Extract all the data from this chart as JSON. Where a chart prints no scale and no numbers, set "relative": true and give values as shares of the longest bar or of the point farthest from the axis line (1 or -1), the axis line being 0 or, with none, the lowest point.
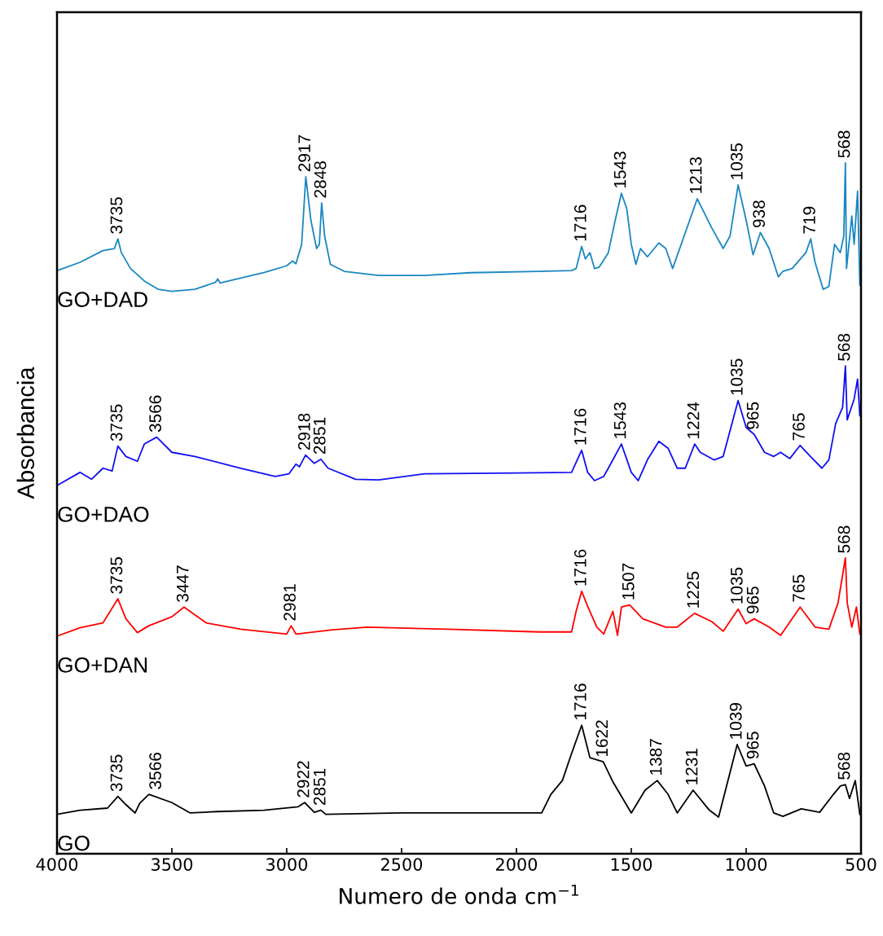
{
  "chart_data": {
    "type": "line",
    "relative": true,
    "xlabel": "Numero de onda cm$^{−1}$",
    "ylabel": "Absorbancia",
    "xlim": [
      4000,
      500
    ],
    "xticks": [
      4000,
      3500,
      3000,
      2500,
      2000,
      1500,
      1000,
      500
    ],
    "grid": false,
    "legend": false,
    "tick_labels": "x",
    "marker": "none",
    "line_style": "solid",
    "series": [
      {
        "name": "GO+DAD",
        "color": "#1a87c2",
        "x": [
          4000,
          3900,
          3800,
          3750,
          3735,
          3720,
          3680,
          3620,
          3560,
          3500,
          3400,
          3310,
          3300,
          3290,
          3100,
          3000,
          2975,
          2960,
          2935,
          2917,
          2895,
          2870,
          2858,
          2848,
          2835,
          2810,
          2750,
          2600,
          2400,
          2200,
          1900,
          1760,
          1740,
          1716,
          1700,
          1680,
          1660,
          1640,
          1600,
          1570,
          1543,
          1520,
          1500,
          1480,
          1460,
          1430,
          1380,
          1350,
          1320,
          1270,
          1213,
          1150,
          1100,
          1070,
          1035,
          1000,
          970,
          938,
          900,
          860,
          840,
          800,
          740,
          719,
          700,
          665,
          640,
          615,
          590,
          575,
          568,
          563,
          540,
          530,
          515,
          505
        ],
        "values": [
          0.844,
          0.856,
          0.873,
          0.876,
          0.89,
          0.87,
          0.847,
          0.829,
          0.817,
          0.814,
          0.817,
          0.827,
          0.832,
          0.826,
          0.841,
          0.851,
          0.858,
          0.854,
          0.882,
          0.98,
          0.917,
          0.876,
          0.882,
          0.942,
          0.894,
          0.853,
          0.843,
          0.837,
          0.837,
          0.841,
          0.843,
          0.844,
          0.847,
          0.879,
          0.861,
          0.87,
          0.847,
          0.849,
          0.87,
          0.917,
          0.956,
          0.934,
          0.882,
          0.853,
          0.876,
          0.864,
          0.884,
          0.876,
          0.847,
          0.894,
          0.948,
          0.906,
          0.876,
          0.894,
          0.968,
          0.917,
          0.867,
          0.899,
          0.876,
          0.835,
          0.843,
          0.847,
          0.87,
          0.89,
          0.856,
          0.817,
          0.821,
          0.882,
          0.87,
          0.894,
          1.0,
          0.847,
          0.923,
          0.882,
          0.959,
          0.823
        ]
      },
      {
        "name": "GO+DAO",
        "color": "#1010f0",
        "x": [
          4000,
          3900,
          3850,
          3800,
          3760,
          3735,
          3700,
          3650,
          3620,
          3566,
          3500,
          3400,
          3200,
          3050,
          2990,
          2960,
          2945,
          2918,
          2880,
          2851,
          2820,
          2700,
          2600,
          2400,
          2000,
          1760,
          1716,
          1690,
          1660,
          1620,
          1600,
          1543,
          1500,
          1470,
          1430,
          1380,
          1340,
          1300,
          1265,
          1224,
          1200,
          1140,
          1100,
          1035,
          1000,
          965,
          920,
          880,
          850,
          810,
          765,
          720,
          670,
          640,
          610,
          580,
          568,
          560,
          530,
          515,
          505
        ],
        "values": [
          0.533,
          0.552,
          0.542,
          0.558,
          0.554,
          0.59,
          0.575,
          0.568,
          0.593,
          0.603,
          0.581,
          0.575,
          0.558,
          0.546,
          0.55,
          0.564,
          0.56,
          0.577,
          0.565,
          0.571,
          0.558,
          0.542,
          0.541,
          0.55,
          0.551,
          0.552,
          0.584,
          0.552,
          0.54,
          0.546,
          0.558,
          0.593,
          0.552,
          0.54,
          0.57,
          0.597,
          0.587,
          0.558,
          0.558,
          0.593,
          0.581,
          0.57,
          0.575,
          0.656,
          0.617,
          0.607,
          0.581,
          0.575,
          0.581,
          0.572,
          0.591,
          0.575,
          0.558,
          0.57,
          0.623,
          0.646,
          0.706,
          0.628,
          0.658,
          0.687,
          0.634
        ]
      },
      {
        "name": "GO+DAN",
        "color": "#ff0000",
        "x": [
          4000,
          3900,
          3800,
          3735,
          3700,
          3650,
          3600,
          3500,
          3447,
          3350,
          3200,
          3000,
          2981,
          2960,
          2800,
          2650,
          2300,
          1900,
          1760,
          1740,
          1716,
          1690,
          1650,
          1620,
          1580,
          1560,
          1543,
          1507,
          1450,
          1350,
          1300,
          1225,
          1150,
          1100,
          1035,
          1000,
          965,
          900,
          850,
          765,
          700,
          640,
          600,
          568,
          560,
          540,
          520,
          505
        ],
        "values": [
          0.315,
          0.327,
          0.334,
          0.369,
          0.34,
          0.32,
          0.33,
          0.343,
          0.357,
          0.334,
          0.325,
          0.318,
          0.33,
          0.318,
          0.324,
          0.328,
          0.325,
          0.321,
          0.321,
          0.351,
          0.38,
          0.358,
          0.328,
          0.318,
          0.351,
          0.316,
          0.357,
          0.36,
          0.34,
          0.328,
          0.328,
          0.348,
          0.336,
          0.322,
          0.354,
          0.333,
          0.34,
          0.328,
          0.316,
          0.357,
          0.328,
          0.325,
          0.363,
          0.428,
          0.363,
          0.328,
          0.357,
          0.318
        ]
      },
      {
        "name": "GO",
        "color": "#000000",
        "x": [
          4000,
          3900,
          3780,
          3735,
          3700,
          3660,
          3640,
          3600,
          3500,
          3420,
          3300,
          3100,
          2950,
          2922,
          2880,
          2851,
          2830,
          2500,
          2000,
          1890,
          1850,
          1800,
          1760,
          1716,
          1680,
          1622,
          1580,
          1500,
          1440,
          1387,
          1340,
          1300,
          1231,
          1160,
          1120,
          1039,
          1000,
          965,
          920,
          880,
          840,
          760,
          680,
          620,
          590,
          568,
          550,
          525,
          505
        ],
        "values": [
          0.057,
          0.063,
          0.066,
          0.083,
          0.071,
          0.059,
          0.073,
          0.086,
          0.074,
          0.059,
          0.061,
          0.063,
          0.068,
          0.074,
          0.06,
          0.063,
          0.057,
          0.059,
          0.059,
          0.059,
          0.086,
          0.106,
          0.145,
          0.186,
          0.139,
          0.133,
          0.104,
          0.059,
          0.092,
          0.106,
          0.086,
          0.059,
          0.092,
          0.063,
          0.053,
          0.158,
          0.127,
          0.13,
          0.098,
          0.059,
          0.054,
          0.065,
          0.06,
          0.086,
          0.098,
          0.1,
          0.08,
          0.106,
          0.057
        ]
      }
    ],
    "annotations": [
      {
        "text": "3735",
        "x": 3735,
        "y": 0.89
      },
      {
        "text": "2917",
        "x": 2917,
        "y": 0.98
      },
      {
        "text": "2848",
        "x": 2848,
        "y": 0.942
      },
      {
        "text": "1716",
        "x": 1716,
        "y": 0.879
      },
      {
        "text": "1543",
        "x": 1543,
        "y": 0.956
      },
      {
        "text": "1213",
        "x": 1213,
        "y": 0.948
      },
      {
        "text": "1035",
        "x": 1035,
        "y": 0.968
      },
      {
        "text": "938",
        "x": 938,
        "y": 0.899
      },
      {
        "text": "719",
        "x": 719,
        "y": 0.89
      },
      {
        "text": "568",
        "x": 568,
        "y": 1.0
      },
      {
        "text": "3735",
        "x": 3735,
        "y": 0.59
      },
      {
        "text": "3566",
        "x": 3566,
        "y": 0.603
      },
      {
        "text": "2918",
        "x": 2918,
        "y": 0.577
      },
      {
        "text": "2851",
        "x": 2851,
        "y": 0.571
      },
      {
        "text": "1716",
        "x": 1716,
        "y": 0.584
      },
      {
        "text": "1543",
        "x": 1543,
        "y": 0.593
      },
      {
        "text": "1224",
        "x": 1224,
        "y": 0.593
      },
      {
        "text": "1035",
        "x": 1035,
        "y": 0.656
      },
      {
        "text": "965",
        "x": 965,
        "y": 0.607
      },
      {
        "text": "765",
        "x": 765,
        "y": 0.591
      },
      {
        "text": "568",
        "x": 568,
        "y": 0.706
      },
      {
        "text": "3735",
        "x": 3735,
        "y": 0.369
      },
      {
        "text": "3447",
        "x": 3447,
        "y": 0.357
      },
      {
        "text": "2981",
        "x": 2981,
        "y": 0.33
      },
      {
        "text": "1716",
        "x": 1716,
        "y": 0.38
      },
      {
        "text": "1507",
        "x": 1507,
        "y": 0.36
      },
      {
        "text": "1225",
        "x": 1225,
        "y": 0.348
      },
      {
        "text": "1035",
        "x": 1035,
        "y": 0.354
      },
      {
        "text": "965",
        "x": 965,
        "y": 0.34
      },
      {
        "text": "765",
        "x": 765,
        "y": 0.357
      },
      {
        "text": "568",
        "x": 568,
        "y": 0.428
      },
      {
        "text": "3735",
        "x": 3735,
        "y": 0.083
      },
      {
        "text": "3566",
        "x": 3566,
        "y": 0.086
      },
      {
        "text": "2922",
        "x": 2922,
        "y": 0.074
      },
      {
        "text": "2851",
        "x": 2851,
        "y": 0.063
      },
      {
        "text": "1716",
        "x": 1716,
        "y": 0.186
      },
      {
        "text": "1622",
        "x": 1622,
        "y": 0.133
      },
      {
        "text": "1387",
        "x": 1387,
        "y": 0.106
      },
      {
        "text": "1231",
        "x": 1231,
        "y": 0.092
      },
      {
        "text": "1039",
        "x": 1039,
        "y": 0.158
      },
      {
        "text": "965",
        "x": 965,
        "y": 0.13
      },
      {
        "text": "568",
        "x": 568,
        "y": 0.1
      }
    ]
  }
}
